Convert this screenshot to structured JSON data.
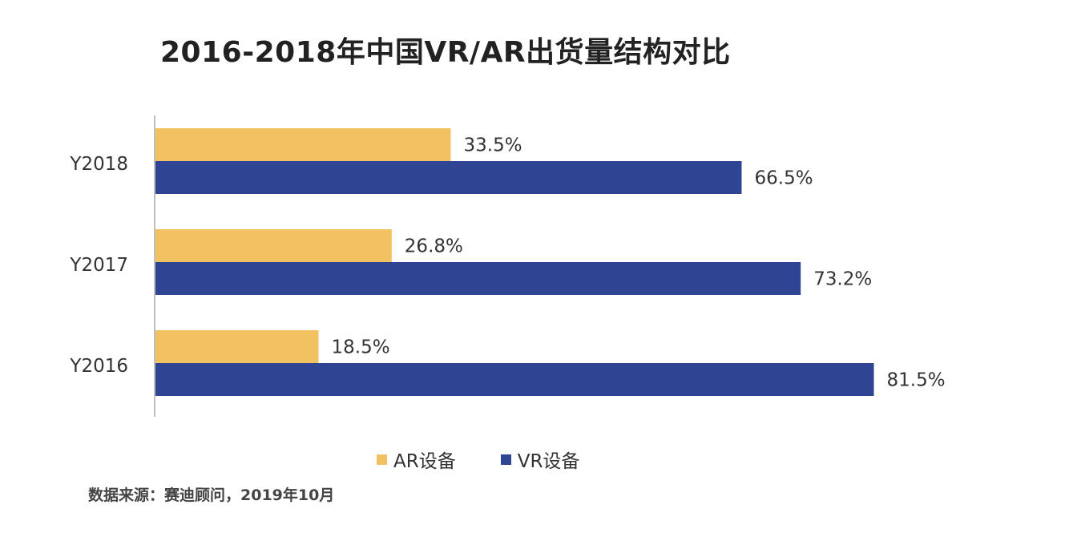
{
  "title": "2016-2018年中国VR/AR出货量结构对比",
  "source": "数据来源：赛迪顾问，2019年10月",
  "chart_data": {
    "type": "bar",
    "orientation": "horizontal",
    "categories": [
      "Y2018",
      "Y2017",
      "Y2016"
    ],
    "series": [
      {
        "name": "AR设备",
        "color": "#F2C262",
        "values": [
          33.5,
          26.8,
          18.5
        ],
        "labels": [
          "33.5%",
          "26.8%",
          "18.5%"
        ]
      },
      {
        "name": "VR设备",
        "color": "#2F4594",
        "values": [
          66.5,
          73.2,
          81.5
        ],
        "labels": [
          "66.5%",
          "73.2%",
          "81.5%"
        ]
      }
    ],
    "xlim": [
      0,
      100
    ],
    "grid": false,
    "legend_position": "bottom"
  }
}
